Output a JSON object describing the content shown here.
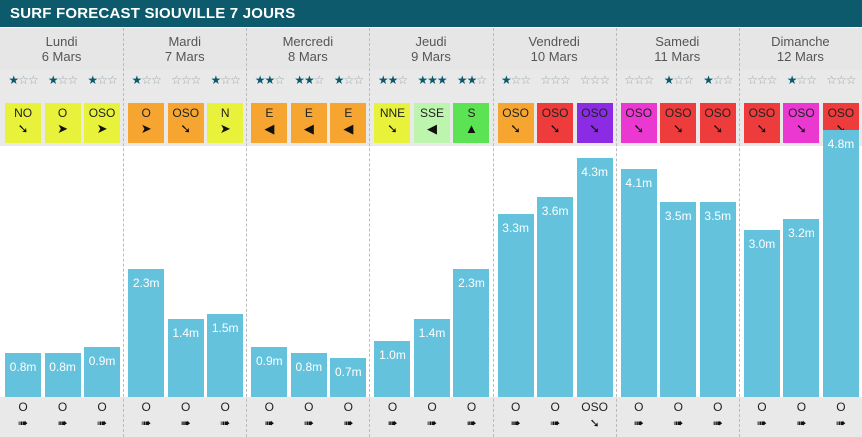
{
  "title": "SURF FORECAST SIOUVILLE 7 JOURS",
  "colors": {
    "header": "#0c5a6c",
    "bar": "#64c2dd",
    "yellow": "#e8f23a",
    "orange": "#f6a531",
    "red": "#ee3b3b",
    "magenta": "#ea38d1",
    "purple": "#8b2be3",
    "green": "#5be354",
    "light_green": "#bdf5ae"
  },
  "chart_data": {
    "type": "bar",
    "unit": "m",
    "ylim": [
      0,
      5
    ],
    "days": [
      {
        "name": "Lundi",
        "date": "6 Mars",
        "slots": [
          {
            "stars": 1,
            "wind": "NO",
            "wind_color": "#e8f23a",
            "wind_arrow": "➘",
            "height": 0.8,
            "label": "0.8m",
            "swell_dir": "O",
            "swell_arrow": "➠"
          },
          {
            "stars": 1,
            "wind": "O",
            "wind_color": "#e8f23a",
            "wind_arrow": "➤",
            "height": 0.8,
            "label": "0.8m",
            "swell_dir": "O",
            "swell_arrow": "➠"
          },
          {
            "stars": 1,
            "wind": "OSO",
            "wind_color": "#e8f23a",
            "wind_arrow": "➤",
            "height": 0.9,
            "label": "0.9m",
            "swell_dir": "O",
            "swell_arrow": "➠"
          }
        ]
      },
      {
        "name": "Mardi",
        "date": "7 Mars",
        "slots": [
          {
            "stars": 1,
            "wind": "O",
            "wind_color": "#f6a531",
            "wind_arrow": "➤",
            "height": 2.3,
            "label": "2.3m",
            "swell_dir": "O",
            "swell_arrow": "➠"
          },
          {
            "stars": 0,
            "wind": "OSO",
            "wind_color": "#f6a531",
            "wind_arrow": "➘",
            "height": 1.4,
            "label": "1.4m",
            "swell_dir": "O",
            "swell_arrow": "➠"
          },
          {
            "stars": 1,
            "wind": "N",
            "wind_color": "#e8f23a",
            "wind_arrow": "➤",
            "height": 1.5,
            "label": "1.5m",
            "swell_dir": "O",
            "swell_arrow": "➠"
          }
        ]
      },
      {
        "name": "Mercredi",
        "date": "8 Mars",
        "slots": [
          {
            "stars": 2,
            "wind": "E",
            "wind_color": "#f6a531",
            "wind_arrow": "◀",
            "height": 0.9,
            "label": "0.9m",
            "swell_dir": "O",
            "swell_arrow": "➠"
          },
          {
            "stars": 2,
            "wind": "E",
            "wind_color": "#f6a531",
            "wind_arrow": "◀",
            "height": 0.8,
            "label": "0.8m",
            "swell_dir": "O",
            "swell_arrow": "➠"
          },
          {
            "stars": 1,
            "wind": "E",
            "wind_color": "#f6a531",
            "wind_arrow": "◀",
            "height": 0.7,
            "label": "0.7m",
            "swell_dir": "O",
            "swell_arrow": "➠"
          }
        ]
      },
      {
        "name": "Jeudi",
        "date": "9 Mars",
        "slots": [
          {
            "stars": 2,
            "wind": "NNE",
            "wind_color": "#e8f23a",
            "wind_arrow": "➘",
            "height": 1.0,
            "label": "1.0m",
            "swell_dir": "O",
            "swell_arrow": "➠"
          },
          {
            "stars": 3,
            "wind": "SSE",
            "wind_color": "#bdf5ae",
            "wind_arrow": "◀",
            "height": 1.4,
            "label": "1.4m",
            "swell_dir": "O",
            "swell_arrow": "➠"
          },
          {
            "stars": 2,
            "wind": "S",
            "wind_color": "#5be354",
            "wind_arrow": "▲",
            "height": 2.3,
            "label": "2.3m",
            "swell_dir": "O",
            "swell_arrow": "➠"
          }
        ]
      },
      {
        "name": "Vendredi",
        "date": "10 Mars",
        "slots": [
          {
            "stars": 1,
            "wind": "OSO",
            "wind_color": "#f6a531",
            "wind_arrow": "➘",
            "height": 3.3,
            "label": "3.3m",
            "swell_dir": "O",
            "swell_arrow": "➠"
          },
          {
            "stars": 0,
            "wind": "OSO",
            "wind_color": "#ee3b3b",
            "wind_arrow": "➘",
            "height": 3.6,
            "label": "3.6m",
            "swell_dir": "O",
            "swell_arrow": "➠"
          },
          {
            "stars": 0,
            "wind": "OSO",
            "wind_color": "#8b2be3",
            "wind_arrow": "➘",
            "height": 4.3,
            "label": "4.3m",
            "swell_dir": "OSO",
            "swell_arrow": "➘"
          }
        ]
      },
      {
        "name": "Samedi",
        "date": "11 Mars",
        "slots": [
          {
            "stars": 0,
            "wind": "OSO",
            "wind_color": "#ea38d1",
            "wind_arrow": "➘",
            "height": 4.1,
            "label": "4.1m",
            "swell_dir": "O",
            "swell_arrow": "➠"
          },
          {
            "stars": 1,
            "wind": "OSO",
            "wind_color": "#ee3b3b",
            "wind_arrow": "➘",
            "height": 3.5,
            "label": "3.5m",
            "swell_dir": "O",
            "swell_arrow": "➠"
          },
          {
            "stars": 1,
            "wind": "OSO",
            "wind_color": "#ee3b3b",
            "wind_arrow": "➘",
            "height": 3.5,
            "label": "3.5m",
            "swell_dir": "O",
            "swell_arrow": "➠"
          }
        ]
      },
      {
        "name": "Dimanche",
        "date": "12 Mars",
        "slots": [
          {
            "stars": 0,
            "wind": "OSO",
            "wind_color": "#ee3b3b",
            "wind_arrow": "➘",
            "height": 3.0,
            "label": "3.0m",
            "swell_dir": "O",
            "swell_arrow": "➠"
          },
          {
            "stars": 1,
            "wind": "OSO",
            "wind_color": "#ea38d1",
            "wind_arrow": "➘",
            "height": 3.2,
            "label": "3.2m",
            "swell_dir": "O",
            "swell_arrow": "➠"
          },
          {
            "stars": 0,
            "wind": "OSO",
            "wind_color": "#ee3b3b",
            "wind_arrow": "➘",
            "height": 4.8,
            "label": "4.8m",
            "swell_dir": "O",
            "swell_arrow": "➠"
          }
        ]
      }
    ]
  }
}
